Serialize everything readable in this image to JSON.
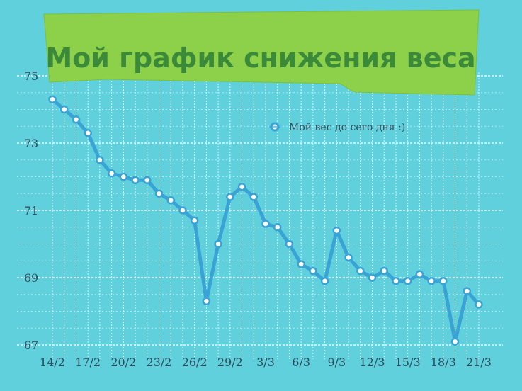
{
  "chart_data": {
    "type": "line",
    "title": "Мой график снижения веса",
    "xlabel": "",
    "ylabel": "",
    "ylim": [
      67,
      75
    ],
    "y_ticks": [
      75,
      73,
      71,
      69,
      67
    ],
    "x": [
      "14/2",
      "15/2",
      "16/2",
      "17/2",
      "18/2",
      "19/2",
      "20/2",
      "21/2",
      "22/2",
      "23/2",
      "24/2",
      "25/2",
      "26/2",
      "27/2",
      "28/2",
      "29/2",
      "1/3",
      "2/3",
      "3/3",
      "4/3",
      "5/3",
      "6/3",
      "7/3",
      "8/3",
      "9/3",
      "10/3",
      "11/3",
      "12/3",
      "13/3",
      "14/3",
      "15/3",
      "16/3",
      "17/3",
      "18/3",
      "19/3",
      "20/3",
      "21/3"
    ],
    "x_tick_labels": [
      "14/2",
      "17/2",
      "20/2",
      "23/2",
      "26/2",
      "29/2",
      "3/3",
      "6/3",
      "9/3",
      "12/3",
      "15/3",
      "18/3",
      "21/3"
    ],
    "grid": true,
    "legend_position": "top-right",
    "series": [
      {
        "name": "Мой вес до сего дня :)",
        "color": "#3aa3d6",
        "values": [
          74.3,
          74.0,
          73.7,
          73.3,
          72.5,
          72.1,
          72.0,
          71.9,
          71.9,
          71.5,
          71.3,
          71.0,
          70.7,
          68.3,
          70.0,
          71.4,
          71.7,
          71.4,
          70.6,
          70.5,
          70.0,
          69.4,
          69.2,
          68.9,
          70.4,
          69.6,
          69.2,
          69.0,
          69.2,
          68.9,
          68.9,
          69.1,
          68.9,
          68.9,
          67.1,
          68.6,
          68.2
        ]
      }
    ]
  },
  "colors": {
    "background": "#5fd0dc",
    "banner": "#8dd14a",
    "title_text": "#3a8a3a",
    "line": "#3aa3d6",
    "grid": "#e9fbfd"
  }
}
